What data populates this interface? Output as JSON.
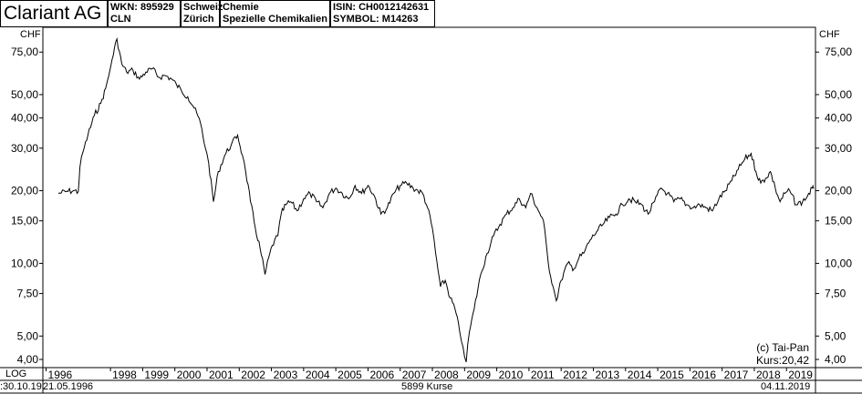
{
  "header": {
    "company": "Clariant AG",
    "wkn": "WKN: 895929",
    "ticker": "CLN",
    "country": "Schweiz",
    "city": "Zürich",
    "sector": "Chemie",
    "industry": "Spezielle Chemikalien",
    "isin": "ISIN: CH0012142631",
    "symbol": "SYMBOL: M14263"
  },
  "footer": {
    "scale_label": "LOG",
    "start_date": ":30.10.19",
    "first_date": "21.05.1996",
    "count": "5899 Kurse",
    "end_date": "04.11.2019"
  },
  "chart_data": {
    "type": "line",
    "scale": "log",
    "y_unit": "CHF",
    "y_ticks": [
      "75,00",
      "50,00",
      "40,00",
      "30,00",
      "20,00",
      "15,00",
      "10,00",
      "7,50",
      "5,00",
      "4,00"
    ],
    "y_tick_values": [
      75,
      50,
      40,
      30,
      20,
      15,
      10,
      7.5,
      5,
      4
    ],
    "x_ticks": [
      "1996",
      "1998",
      "1999",
      "2000",
      "2001",
      "2002",
      "2003",
      "2004",
      "2005",
      "2006",
      "2007",
      "2008",
      "2009",
      "2010",
      "2011",
      "2012",
      "2013",
      "2014",
      "2015",
      "2016",
      "2017",
      "2018",
      "2019"
    ],
    "x_tick_values": [
      1996,
      1998,
      1999,
      2000,
      2001,
      2002,
      2003,
      2004,
      2005,
      2006,
      2007,
      2008,
      2009,
      2010,
      2011,
      2012,
      2013,
      2014,
      2015,
      2016,
      2017,
      2018,
      2019
    ],
    "xlim": [
      1995.9,
      2019.9
    ],
    "ylim": [
      3.7,
      95
    ],
    "copyright": "(c) Tai-Pan",
    "last_price": "Kurs:20,42",
    "series": [
      {
        "x": [
          1996.38,
          1996.6,
          1996.85,
          1997.0,
          1997.05,
          1997.15,
          1997.3,
          1997.5,
          1997.7,
          1997.85,
          1997.95,
          1998.05,
          1998.2,
          1998.35,
          1998.5,
          1998.7,
          1998.9,
          1999.1,
          1999.3,
          1999.5,
          1999.7,
          1999.9,
          2000.05,
          2000.2,
          2000.4,
          2000.6,
          2000.8,
          2000.95,
          2001.05,
          2001.2,
          2001.35,
          2001.55,
          2001.75,
          2001.95,
          2002.1,
          2002.2,
          2002.35,
          2002.5,
          2002.65,
          2002.8,
          2002.95,
          2003.1,
          2003.2,
          2003.3,
          2003.45,
          2003.6,
          2003.8,
          2004.0,
          2004.2,
          2004.4,
          2004.6,
          2004.8,
          2005.0,
          2005.2,
          2005.4,
          2005.6,
          2005.8,
          2006.0,
          2006.2,
          2006.4,
          2006.6,
          2006.8,
          2007.0,
          2007.2,
          2007.4,
          2007.55,
          2007.7,
          2007.85,
          2008.0,
          2008.1,
          2008.25,
          2008.4,
          2008.55,
          2008.7,
          2008.85,
          2008.95,
          2009.05,
          2009.15,
          2009.3,
          2009.5,
          2009.7,
          2009.9,
          2010.1,
          2010.3,
          2010.5,
          2010.7,
          2010.9,
          2011.05,
          2011.25,
          2011.45,
          2011.6,
          2011.75,
          2011.85,
          2012.0,
          2012.2,
          2012.4,
          2012.55,
          2012.7,
          2012.9,
          2013.1,
          2013.3,
          2013.5,
          2013.7,
          2013.9,
          2014.1,
          2014.3,
          2014.5,
          2014.7,
          2014.9,
          2015.1,
          2015.3,
          2015.5,
          2015.7,
          2015.9,
          2016.1,
          2016.3,
          2016.5,
          2016.7,
          2016.9,
          2017.1,
          2017.3,
          2017.5,
          2017.7,
          2017.9,
          2018.05,
          2018.2,
          2018.35,
          2018.5,
          2018.65,
          2018.8,
          2018.95,
          2019.1,
          2019.3,
          2019.5,
          2019.65,
          2019.8,
          2019.84
        ],
        "y": [
          19.5,
          19.8,
          20.0,
          19.8,
          25,
          29,
          34,
          41,
          46,
          53,
          60,
          70,
          85,
          67,
          62,
          63,
          58,
          62,
          64,
          59,
          60,
          58,
          55,
          52,
          49,
          44,
          38,
          30,
          26,
          18,
          24,
          28,
          31,
          34,
          28,
          24,
          18,
          14,
          11.5,
          9,
          11,
          12.5,
          13,
          16,
          17.5,
          18,
          16.5,
          18.5,
          19.5,
          18,
          17,
          19.5,
          20.5,
          19.5,
          18.5,
          21,
          19.5,
          21,
          19,
          16,
          17,
          19.5,
          21,
          21.5,
          20.5,
          20,
          19.5,
          17,
          14,
          11,
          8,
          8.5,
          7.2,
          6.5,
          5.2,
          4.5,
          3.9,
          5.2,
          6.5,
          9,
          11,
          13,
          14.5,
          16,
          17,
          18.5,
          17,
          19.5,
          17,
          15,
          10,
          8,
          7,
          8.5,
          10,
          9.5,
          10.5,
          11,
          12.5,
          13.5,
          14.5,
          15.5,
          16,
          17.5,
          18.5,
          18,
          17.5,
          16,
          18,
          20.5,
          19.5,
          18,
          18.5,
          17.5,
          17,
          17.5,
          17,
          16.5,
          18.5,
          20,
          22,
          24.5,
          27,
          28.5,
          24,
          21.5,
          22.5,
          24,
          20.5,
          18,
          19.5,
          20,
          17.5,
          18,
          19,
          20.5,
          20.42
        ]
      }
    ]
  }
}
